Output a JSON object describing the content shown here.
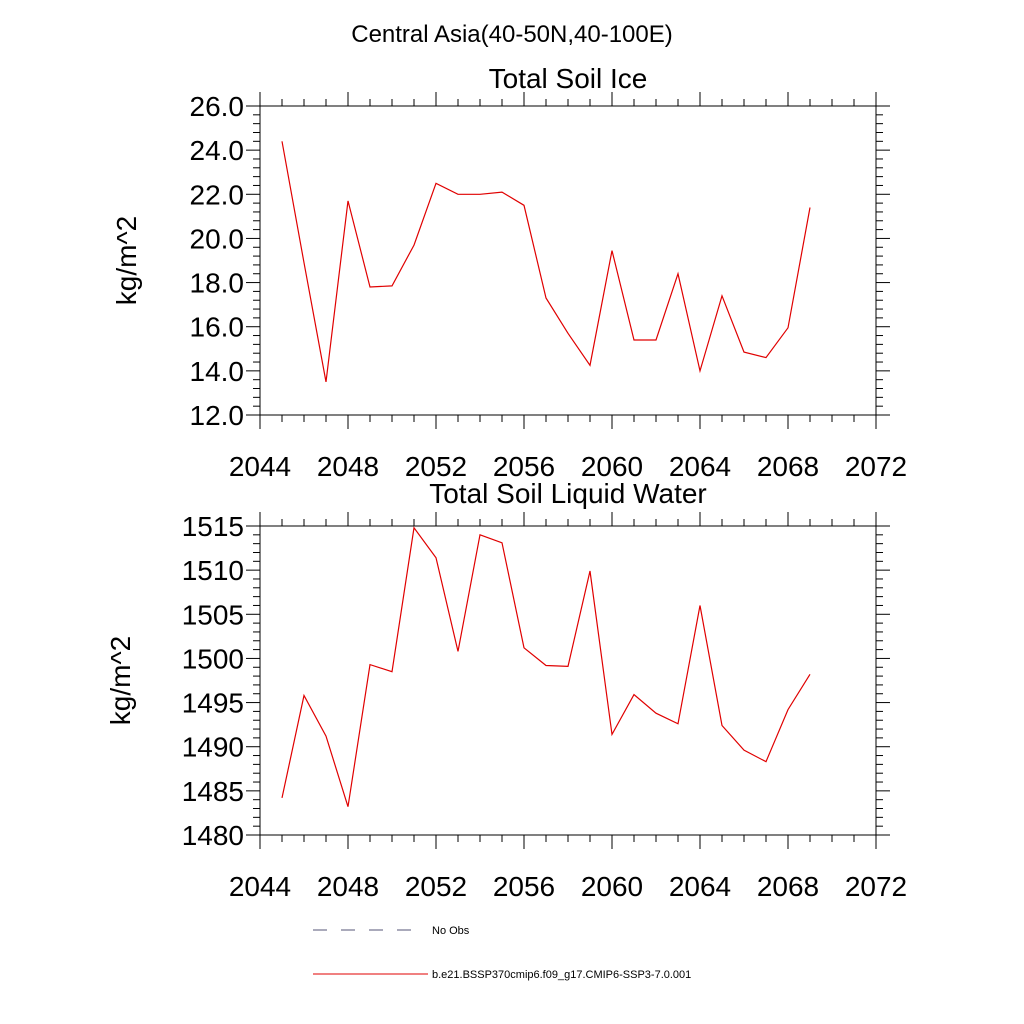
{
  "figure_title": "Central Asia(40-50N,40-100E)",
  "colors": {
    "model_line": "#e00000",
    "obs_line": "#555577",
    "axis": "#000000"
  },
  "legend": {
    "entries": [
      {
        "label": "No Obs",
        "style": "dashed"
      },
      {
        "label": "b.e21.BSSP370cmip6.f09_g17.CMIP6-SSP3-7.0.001",
        "style": "solid"
      }
    ]
  },
  "chart_data": [
    {
      "type": "line",
      "title": "Total Soil Ice",
      "xlabel": "",
      "ylabel": "kg/m^2",
      "xlim": [
        2044,
        2072
      ],
      "ylim": [
        12,
        26
      ],
      "x_ticks": [
        "2044",
        "2048",
        "2052",
        "2056",
        "2060",
        "2064",
        "2068",
        "2072"
      ],
      "y_ticks": [
        "12.0",
        "14.0",
        "16.0",
        "18.0",
        "20.0",
        "22.0",
        "24.0",
        "26.0"
      ],
      "grid": false,
      "series": [
        {
          "name": "b.e21.BSSP370cmip6.f09_g17.CMIP6-SSP3-7.0.001",
          "x": [
            2045,
            2046,
            2047,
            2048,
            2049,
            2050,
            2051,
            2052,
            2053,
            2054,
            2055,
            2056,
            2057,
            2058,
            2059,
            2060,
            2061,
            2062,
            2063,
            2064,
            2065,
            2066,
            2067,
            2068,
            2069
          ],
          "values": [
            24.4,
            18.9,
            13.5,
            21.7,
            17.8,
            17.85,
            19.7,
            22.5,
            22.0,
            22.0,
            22.1,
            21.5,
            17.3,
            15.7,
            14.25,
            19.45,
            15.4,
            15.4,
            18.4,
            14.0,
            17.4,
            14.85,
            14.6,
            15.95,
            21.4
          ]
        }
      ]
    },
    {
      "type": "line",
      "title": "Total Soil Liquid Water",
      "xlabel": "",
      "ylabel": "kg/m^2",
      "xlim": [
        2044,
        2072
      ],
      "ylim": [
        1480,
        1515
      ],
      "x_ticks": [
        "2044",
        "2048",
        "2052",
        "2056",
        "2060",
        "2064",
        "2068",
        "2072"
      ],
      "y_ticks": [
        "1480",
        "1485",
        "1490",
        "1495",
        "1500",
        "1505",
        "1510",
        "1515"
      ],
      "grid": false,
      "series": [
        {
          "name": "b.e21.BSSP370cmip6.f09_g17.CMIP6-SSP3-7.0.001",
          "x": [
            2045,
            2046,
            2047,
            2048,
            2049,
            2050,
            2051,
            2052,
            2053,
            2054,
            2055,
            2056,
            2057,
            2058,
            2059,
            2060,
            2061,
            2062,
            2063,
            2064,
            2065,
            2066,
            2067,
            2068,
            2069
          ],
          "values": [
            1484.2,
            1495.8,
            1491.2,
            1483.2,
            1499.3,
            1498.5,
            1514.8,
            1511.4,
            1500.8,
            1514.0,
            1513.1,
            1501.2,
            1499.2,
            1499.1,
            1509.9,
            1491.4,
            1495.9,
            1493.8,
            1492.6,
            1506.0,
            1492.4,
            1489.6,
            1488.3,
            1494.2,
            1498.2
          ]
        }
      ]
    }
  ]
}
